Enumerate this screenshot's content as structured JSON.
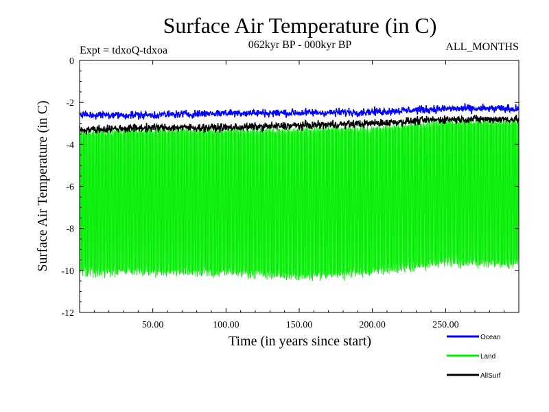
{
  "chart_data": {
    "type": "line",
    "title": "Surface Air Temperature (in C)",
    "subtitle_left": "Expt = tdxoQ-tdxoa",
    "subtitle_center": "062kyr BP - 000kyr BP",
    "subtitle_right": "ALL_MONTHS",
    "xlabel": "Time (in years since start)",
    "ylabel": "Surface Air Temperature (in C)",
    "xlim": [
      0,
      300
    ],
    "ylim": [
      -12,
      0
    ],
    "x_ticks": [
      50,
      100,
      150,
      200,
      250
    ],
    "x_tick_labels": [
      "50.00",
      "100.00",
      "150.00",
      "200.00",
      "250.00"
    ],
    "y_ticks": [
      0,
      -2,
      -4,
      -6,
      -8,
      -10,
      -12
    ],
    "y_tick_labels": [
      "0",
      "-2",
      "-4",
      "-6",
      "-8",
      "-10",
      "-12"
    ],
    "grid": false,
    "legend_position": "bottom-right",
    "series": [
      {
        "name": "Land",
        "color": "#00ee00",
        "style": "monthly-oscillation",
        "upper_envelope": [
          [
            0,
            -3.5
          ],
          [
            50,
            -3.4
          ],
          [
            100,
            -3.4
          ],
          [
            150,
            -3.4
          ],
          [
            200,
            -3.3
          ],
          [
            250,
            -3.0
          ],
          [
            300,
            -3.0
          ]
        ],
        "lower_envelope": [
          [
            0,
            -10.0
          ],
          [
            50,
            -10.0
          ],
          [
            100,
            -10.0
          ],
          [
            150,
            -10.2
          ],
          [
            200,
            -10.0
          ],
          [
            250,
            -9.5
          ],
          [
            300,
            -9.6
          ]
        ]
      },
      {
        "name": "AllSurf",
        "color": "#000000",
        "style": "annual-noisy",
        "trend": [
          [
            0,
            -3.3
          ],
          [
            50,
            -3.2
          ],
          [
            100,
            -3.2
          ],
          [
            150,
            -3.1
          ],
          [
            200,
            -3.0
          ],
          [
            250,
            -2.8
          ],
          [
            300,
            -2.8
          ]
        ]
      },
      {
        "name": "Ocean",
        "color": "#0000ff",
        "style": "annual-noisy",
        "trend": [
          [
            0,
            -2.6
          ],
          [
            50,
            -2.6
          ],
          [
            100,
            -2.5
          ],
          [
            150,
            -2.5
          ],
          [
            200,
            -2.45
          ],
          [
            250,
            -2.3
          ],
          [
            300,
            -2.3
          ]
        ]
      }
    ],
    "legend": [
      {
        "name": "Ocean",
        "color": "#0000ff"
      },
      {
        "name": "Land",
        "color": "#00ee00"
      },
      {
        "name": "AllSurf",
        "color": "#000000"
      }
    ]
  }
}
